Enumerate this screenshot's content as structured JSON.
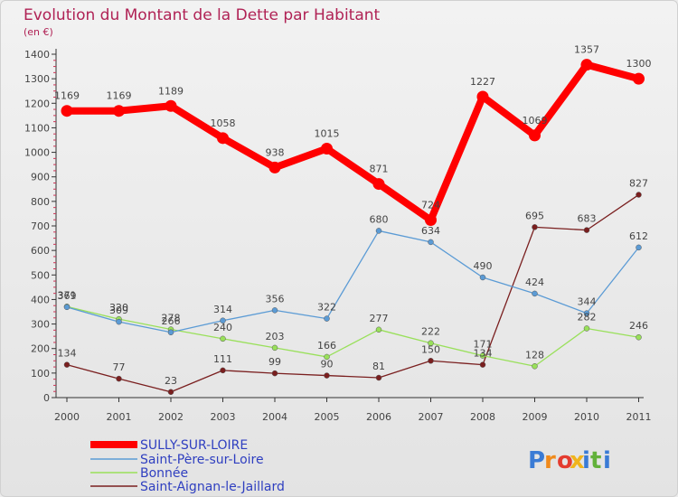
{
  "chart_data": {
    "type": "line",
    "title": "Evolution du Montant de la Dette par Habitant",
    "subtitle": "(en €)",
    "x": [
      "2000",
      "2001",
      "2002",
      "2003",
      "2004",
      "2005",
      "2006",
      "2007",
      "2008",
      "2009",
      "2010",
      "2011"
    ],
    "ylim": [
      0,
      1400
    ],
    "yticks": [
      0,
      100,
      200,
      300,
      400,
      500,
      600,
      700,
      800,
      900,
      1000,
      1100,
      1200,
      1300,
      1400
    ],
    "grid": false,
    "legend_position": "bottom-left",
    "series": [
      {
        "name": "SULLY-SUR-LOIRE",
        "color": "#ff0000",
        "values": [
          1169,
          1169,
          1189,
          1058,
          938,
          1015,
          871,
          724,
          1227,
          1069,
          1357,
          1300
        ]
      },
      {
        "name": "Saint-Père-sur-Loire",
        "color": "#5b9bd5",
        "values": [
          369,
          309,
          266,
          314,
          356,
          322,
          680,
          634,
          490,
          424,
          344,
          612
        ]
      },
      {
        "name": "Bonnée",
        "color": "#99e05a",
        "values": [
          371,
          320,
          278,
          240,
          203,
          166,
          277,
          222,
          171,
          128,
          282,
          246
        ]
      },
      {
        "name": "Saint-Aignan-le-Jaillard",
        "color": "#7a1f1f",
        "values": [
          134,
          77,
          23,
          111,
          99,
          90,
          81,
          150,
          134,
          695,
          683,
          827
        ]
      }
    ]
  },
  "logo": {
    "letters": [
      "P",
      "r",
      "o",
      "x",
      "i",
      "t",
      "i"
    ],
    "colors": [
      "#3a7bd5",
      "#f08a1c",
      "#e43b2f",
      "#f0b41c",
      "#3a7bd5",
      "#62b13a",
      "#3a7bd5"
    ]
  }
}
